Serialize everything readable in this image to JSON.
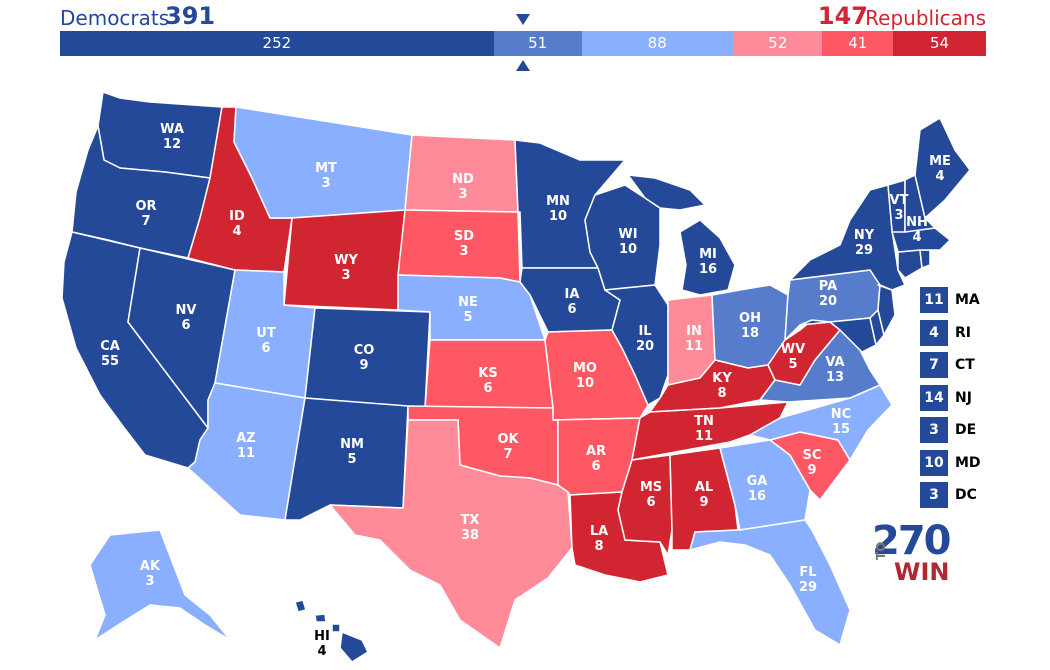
{
  "colors": {
    "safe_d": "#244999",
    "likely_d": "#577CCC",
    "lean_d": "#8AAFFF",
    "lean_r": "#FF8B98",
    "likely_r": "#FF5865",
    "safe_r": "#D22532"
  },
  "header": {
    "dem_label": "Democrats",
    "dem_total": "391",
    "rep_total": "147",
    "rep_label": "Republicans"
  },
  "bar": {
    "segments": [
      {
        "value": 252,
        "label": "252",
        "color": "#244999"
      },
      {
        "value": 51,
        "label": "51",
        "color": "#577CCC"
      },
      {
        "value": 88,
        "label": "88",
        "color": "#8AAFFF"
      },
      {
        "value": 52,
        "label": "52",
        "color": "#FF8B98"
      },
      {
        "value": 41,
        "label": "41",
        "color": "#FF5865"
      },
      {
        "value": 54,
        "label": "54",
        "color": "#D22532"
      }
    ]
  },
  "states": [
    {
      "abbr": "WA",
      "votes": "12",
      "rating": "safe_d"
    },
    {
      "abbr": "OR",
      "votes": "7",
      "rating": "safe_d"
    },
    {
      "abbr": "CA",
      "votes": "55",
      "rating": "safe_d"
    },
    {
      "abbr": "NV",
      "votes": "6",
      "rating": "safe_d"
    },
    {
      "abbr": "ID",
      "votes": "4",
      "rating": "safe_r"
    },
    {
      "abbr": "MT",
      "votes": "3",
      "rating": "lean_d"
    },
    {
      "abbr": "WY",
      "votes": "3",
      "rating": "safe_r"
    },
    {
      "abbr": "UT",
      "votes": "6",
      "rating": "lean_d"
    },
    {
      "abbr": "CO",
      "votes": "9",
      "rating": "safe_d"
    },
    {
      "abbr": "AZ",
      "votes": "11",
      "rating": "lean_d"
    },
    {
      "abbr": "NM",
      "votes": "5",
      "rating": "safe_d"
    },
    {
      "abbr": "ND",
      "votes": "3",
      "rating": "lean_r"
    },
    {
      "abbr": "SD",
      "votes": "3",
      "rating": "likely_r"
    },
    {
      "abbr": "NE",
      "votes": "5",
      "rating": "lean_d"
    },
    {
      "abbr": "KS",
      "votes": "6",
      "rating": "likely_r"
    },
    {
      "abbr": "OK",
      "votes": "7",
      "rating": "likely_r"
    },
    {
      "abbr": "TX",
      "votes": "38",
      "rating": "lean_r"
    },
    {
      "abbr": "MN",
      "votes": "10",
      "rating": "safe_d"
    },
    {
      "abbr": "IA",
      "votes": "6",
      "rating": "safe_d"
    },
    {
      "abbr": "MO",
      "votes": "10",
      "rating": "likely_r"
    },
    {
      "abbr": "AR",
      "votes": "6",
      "rating": "likely_r"
    },
    {
      "abbr": "LA",
      "votes": "8",
      "rating": "safe_r"
    },
    {
      "abbr": "WI",
      "votes": "10",
      "rating": "safe_d"
    },
    {
      "abbr": "IL",
      "votes": "20",
      "rating": "safe_d"
    },
    {
      "abbr": "MI",
      "votes": "16",
      "rating": "safe_d"
    },
    {
      "abbr": "IN",
      "votes": "11",
      "rating": "lean_r"
    },
    {
      "abbr": "OH",
      "votes": "18",
      "rating": "likely_d"
    },
    {
      "abbr": "KY",
      "votes": "8",
      "rating": "safe_r"
    },
    {
      "abbr": "TN",
      "votes": "11",
      "rating": "safe_r"
    },
    {
      "abbr": "MS",
      "votes": "6",
      "rating": "safe_r"
    },
    {
      "abbr": "AL",
      "votes": "9",
      "rating": "safe_r"
    },
    {
      "abbr": "GA",
      "votes": "16",
      "rating": "lean_d"
    },
    {
      "abbr": "FL",
      "votes": "29",
      "rating": "lean_d"
    },
    {
      "abbr": "SC",
      "votes": "9",
      "rating": "likely_r"
    },
    {
      "abbr": "NC",
      "votes": "15",
      "rating": "lean_d"
    },
    {
      "abbr": "VA",
      "votes": "13",
      "rating": "likely_d"
    },
    {
      "abbr": "WV",
      "votes": "5",
      "rating": "safe_r"
    },
    {
      "abbr": "PA",
      "votes": "20",
      "rating": "likely_d"
    },
    {
      "abbr": "NY",
      "votes": "29",
      "rating": "safe_d"
    },
    {
      "abbr": "VT",
      "votes": "3",
      "rating": "safe_d"
    },
    {
      "abbr": "NH",
      "votes": "4",
      "rating": "safe_d"
    },
    {
      "abbr": "ME",
      "votes": "4",
      "rating": "safe_d"
    },
    {
      "abbr": "AK",
      "votes": "3",
      "rating": "lean_d"
    },
    {
      "abbr": "HI",
      "votes": "4",
      "rating": "safe_d"
    }
  ],
  "small_states": [
    {
      "abbr": "MA",
      "votes": "11",
      "rating": "safe_d"
    },
    {
      "abbr": "RI",
      "votes": "4",
      "rating": "safe_d"
    },
    {
      "abbr": "CT",
      "votes": "7",
      "rating": "safe_d"
    },
    {
      "abbr": "NJ",
      "votes": "14",
      "rating": "safe_d"
    },
    {
      "abbr": "DE",
      "votes": "3",
      "rating": "safe_d"
    },
    {
      "abbr": "MD",
      "votes": "10",
      "rating": "safe_d"
    },
    {
      "abbr": "DC",
      "votes": "3",
      "rating": "safe_d"
    }
  ],
  "logo": {
    "number": "270",
    "to": "TO",
    "win": "WIN"
  }
}
